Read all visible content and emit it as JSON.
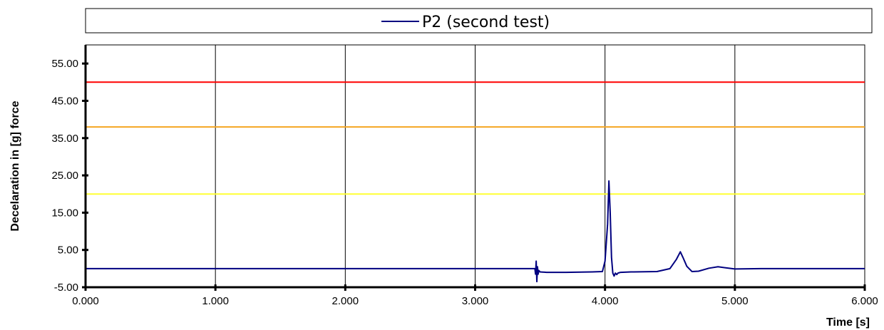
{
  "chart_data": {
    "type": "line",
    "legend": {
      "position": "top",
      "entries": [
        "P2  (second test)"
      ]
    },
    "xlabel": "Time [s]",
    "ylabel": "Decelaration in [g]  force",
    "xlim": [
      0,
      6
    ],
    "ylim": [
      -5,
      60
    ],
    "x_ticks": [
      "0.000",
      "1.000",
      "2.000",
      "3.000",
      "4.000",
      "5.000",
      "6.000"
    ],
    "y_ticks": [
      "55.00",
      "45.00",
      "35.00",
      "25.00",
      "15.00",
      "5.00",
      "-5.00"
    ],
    "grid": {
      "vertical": true,
      "horizontal": false
    },
    "thresholds": [
      {
        "value": 50,
        "color": "#ff0000"
      },
      {
        "value": 38,
        "color": "#f5a623"
      },
      {
        "value": 20,
        "color": "#ffff33"
      }
    ],
    "series": [
      {
        "name": "P2  (second test)",
        "color": "#000080",
        "x": [
          0,
          3.44,
          3.46,
          3.465,
          3.47,
          3.475,
          3.48,
          3.485,
          3.49,
          3.5,
          3.55,
          3.7,
          3.9,
          3.98,
          4.0,
          4.02,
          4.03,
          4.04,
          4.05,
          4.06,
          4.07,
          4.08,
          4.09,
          4.1,
          4.12,
          4.2,
          4.4,
          4.5,
          4.55,
          4.58,
          4.6,
          4.63,
          4.67,
          4.72,
          4.8,
          4.87,
          4.93,
          5.0,
          5.2,
          6.0
        ],
        "values": [
          0,
          0,
          0,
          -1.5,
          2,
          -3.5,
          0.5,
          -1.5,
          -0.5,
          -0.9,
          -1,
          -1,
          -0.9,
          -0.8,
          2,
          12,
          23.5,
          15,
          3,
          -1.2,
          -2,
          -1.2,
          -1.6,
          -1.2,
          -1,
          -0.9,
          -0.8,
          0,
          2.5,
          4.5,
          3,
          0.6,
          -0.8,
          -0.7,
          0.1,
          0.5,
          0.2,
          -0.1,
          0,
          0
        ]
      }
    ]
  }
}
